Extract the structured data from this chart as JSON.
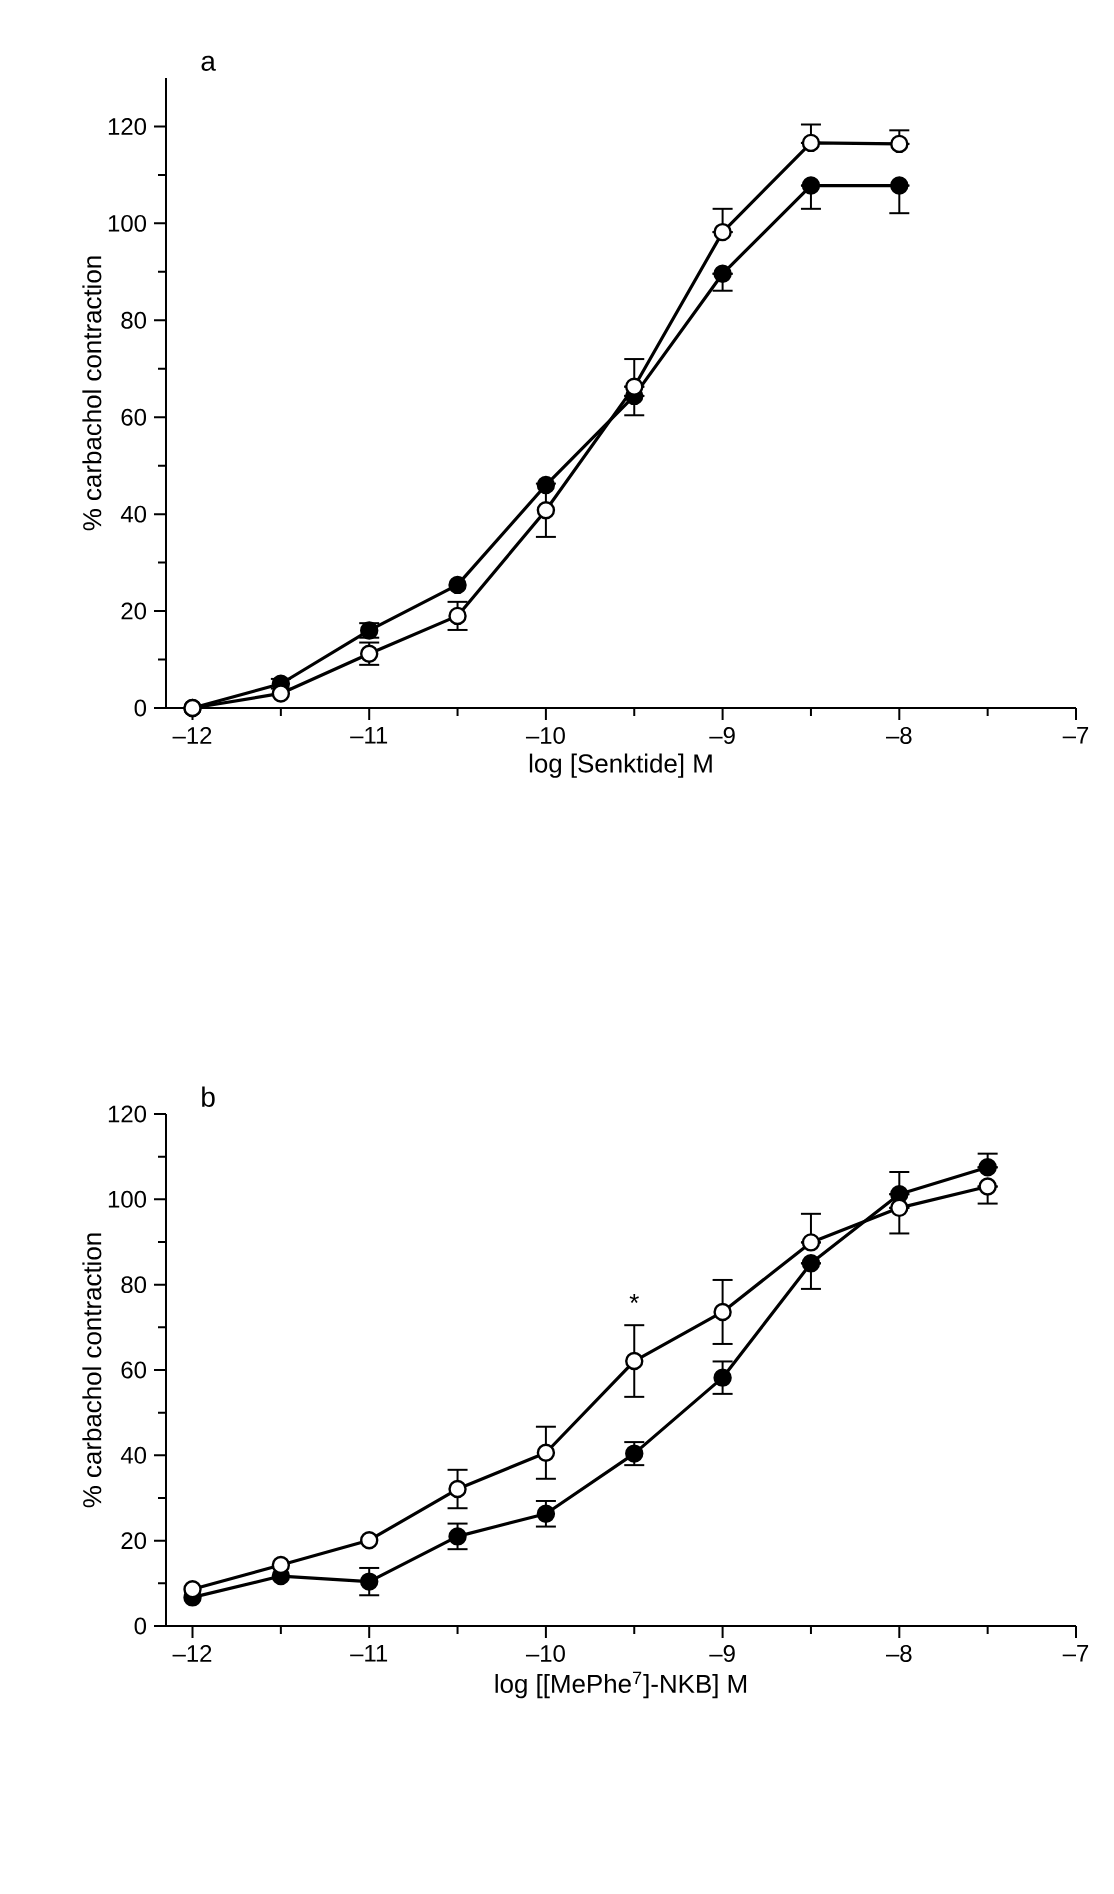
{
  "chart_data": [
    {
      "type": "line",
      "title": "a",
      "xlabel": "log [Senktide] M",
      "ylabel": "% carbachol contraction",
      "marker": "circle",
      "line_style": "solid",
      "xlim": [
        -12.15,
        -7
      ],
      "ylim": [
        0,
        130
      ],
      "xticks": [
        {
          "value": -12,
          "label": "–12"
        },
        {
          "value": -11,
          "label": "–11"
        },
        {
          "value": -10,
          "label": "–10"
        },
        {
          "value": -9,
          "label": "–9"
        },
        {
          "value": -8,
          "label": "–8"
        },
        {
          "value": -7,
          "label": "–7"
        }
      ],
      "yticks": [
        0,
        20,
        40,
        60,
        80,
        100,
        120
      ],
      "x": [
        -12,
        -11.5,
        -11,
        -10.5,
        -10,
        -9.5,
        -9,
        -8.5,
        -8
      ],
      "series": [
        {
          "color": "#000000",
          "values": [
            0,
            5,
            16,
            25.4,
            46,
            64.4,
            89.6,
            107.8,
            107.8
          ],
          "errors": [
            null,
            1,
            1.5,
            null,
            null,
            [
              60.4,
              64.4
            ],
            [
              86.1,
              89.6
            ],
            [
              103,
              107.8
            ],
            [
              102.1,
              107.8
            ]
          ]
        },
        {
          "color": "#ffffff",
          "values": [
            0,
            3,
            11.2,
            19,
            40.8,
            66.3,
            98.2,
            116.6,
            116.4
          ],
          "errors": [
            null,
            null,
            2.3,
            2.9,
            5.5,
            [
              66.3,
              72
            ],
            [
              98.2,
              103
            ],
            [
              116.6,
              120.4
            ],
            [
              116.4,
              119.2
            ]
          ]
        }
      ]
    },
    {
      "type": "line",
      "title": "b",
      "xlabel": "log [[MePhe$^{7}$]-NKB] M",
      "ylabel": "% carbachol contraction",
      "marker": "circle",
      "line_style": "solid",
      "xlim": [
        -12.15,
        -7
      ],
      "ylim": [
        0,
        120
      ],
      "xticks": [
        {
          "value": -12,
          "label": "–12"
        },
        {
          "value": -11,
          "label": "–11"
        },
        {
          "value": -10,
          "label": "–10"
        },
        {
          "value": -9,
          "label": "–9"
        },
        {
          "value": -8,
          "label": "–8"
        },
        {
          "value": -7,
          "label": "–7"
        }
      ],
      "yticks": [
        0,
        20,
        40,
        60,
        80,
        100,
        120
      ],
      "x": [
        -12,
        -11.5,
        -11,
        -10.5,
        -10,
        -9.5,
        -9,
        -8.5,
        -8,
        -7.5
      ],
      "annotations": [
        {
          "text": "*",
          "x": -9.5,
          "y": 72
        }
      ],
      "series": [
        {
          "color": "#000000",
          "values": [
            6.7,
            11.7,
            10.4,
            21,
            26.3,
            40.4,
            58.2,
            85,
            101.2,
            107.5
          ],
          "errors": [
            null,
            null,
            3.2,
            3,
            3,
            2.7,
            3.8,
            [
              79,
              85
            ],
            [
              101.2,
              106.4
            ],
            [
              107.5,
              110.7
            ]
          ]
        },
        {
          "color": "#ffffff",
          "values": [
            8.6,
            14.3,
            20.1,
            32.1,
            40.6,
            62.1,
            73.6,
            89.9,
            98,
            103
          ],
          "errors": [
            null,
            null,
            null,
            4.5,
            6.1,
            8.4,
            7.5,
            [
              89.9,
              96.6
            ],
            [
              92,
              98
            ],
            [
              99,
              103
            ]
          ]
        }
      ]
    }
  ]
}
